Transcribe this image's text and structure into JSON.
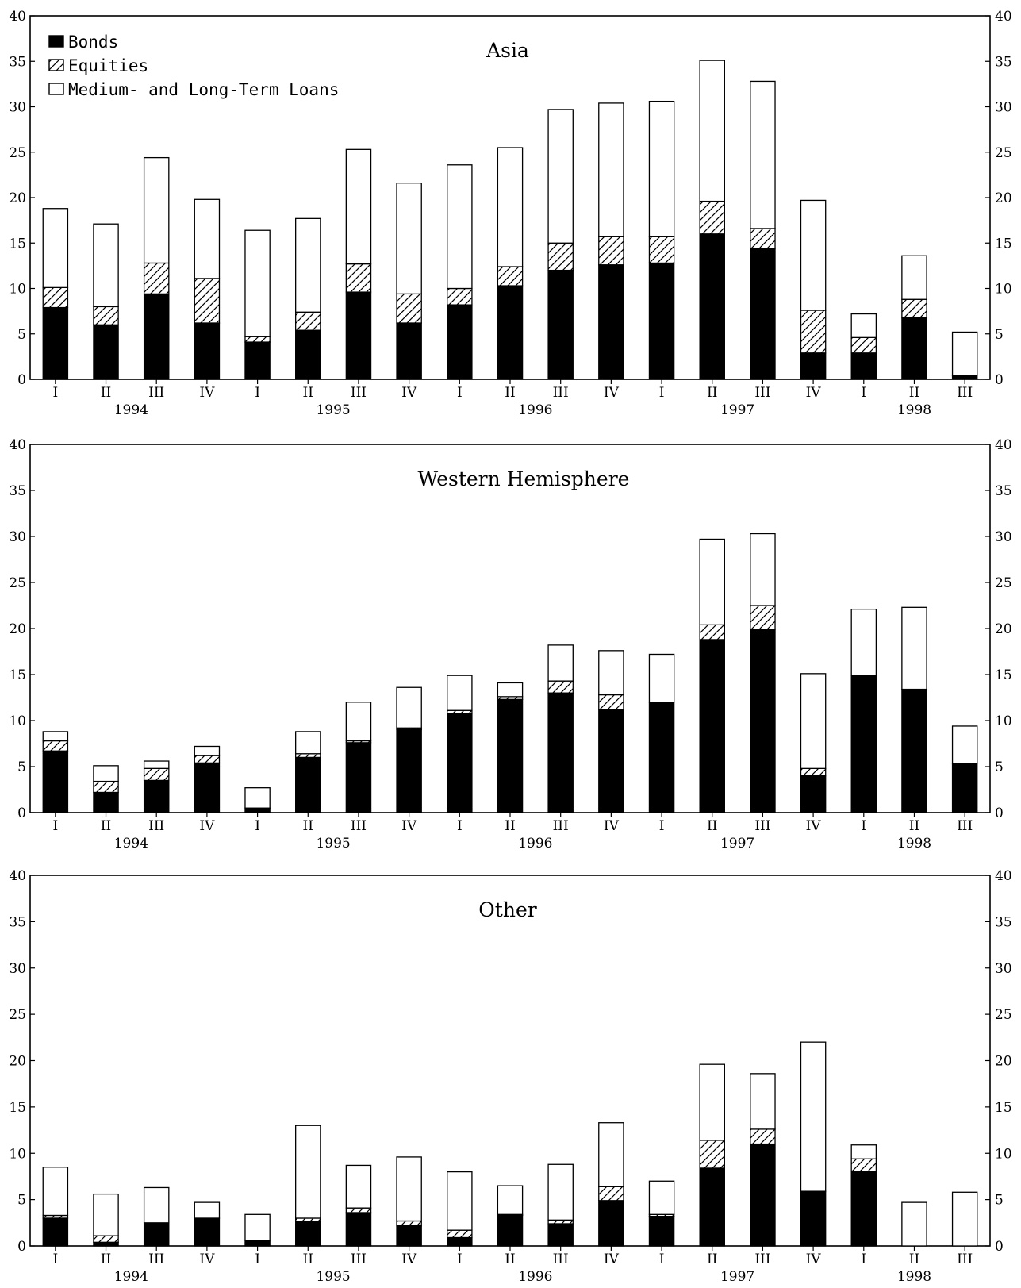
{
  "legend": {
    "bonds": "Bonds",
    "equities": "Equities",
    "loans": "Medium- and Long-Term Loans"
  },
  "chart_data": [
    {
      "type": "bar",
      "stacked": true,
      "title": "Asia",
      "quarters": [
        "I",
        "II",
        "III",
        "IV",
        "I",
        "II",
        "III",
        "IV",
        "I",
        "II",
        "III",
        "IV",
        "I",
        "II",
        "III",
        "IV",
        "I",
        "II",
        "III"
      ],
      "years": [
        "1994",
        "1995",
        "1996",
        "1997",
        "1998"
      ],
      "ylim": [
        0,
        40
      ],
      "yticks": [
        "0",
        "5",
        "10",
        "15",
        "20",
        "25",
        "30",
        "35",
        "40"
      ],
      "series": [
        {
          "name": "Bonds",
          "values": [
            7.9,
            6.0,
            9.4,
            6.2,
            4.1,
            5.4,
            9.6,
            6.2,
            8.2,
            10.3,
            12.0,
            12.6,
            12.8,
            16.0,
            14.4,
            2.9,
            2.9,
            6.8,
            0.4
          ]
        },
        {
          "name": "Equities",
          "values": [
            2.2,
            2.0,
            3.4,
            4.9,
            0.6,
            2.0,
            3.1,
            3.2,
            1.8,
            2.1,
            3.0,
            3.1,
            2.9,
            3.6,
            2.2,
            4.7,
            1.7,
            2.0,
            0.0
          ]
        },
        {
          "name": "Medium- and Long-Term Loans",
          "values": [
            8.7,
            9.1,
            11.6,
            8.7,
            11.7,
            10.3,
            12.6,
            12.2,
            13.6,
            13.1,
            14.7,
            14.7,
            14.9,
            15.5,
            16.2,
            12.1,
            2.6,
            4.8,
            4.8
          ]
        }
      ]
    },
    {
      "type": "bar",
      "stacked": true,
      "title": "Western Hemisphere",
      "quarters": [
        "I",
        "II",
        "III",
        "IV",
        "I",
        "II",
        "III",
        "IV",
        "I",
        "II",
        "III",
        "IV",
        "I",
        "II",
        "III",
        "IV",
        "I",
        "II",
        "III"
      ],
      "years": [
        "1994",
        "1995",
        "1996",
        "1997",
        "1998"
      ],
      "ylim": [
        0,
        40
      ],
      "yticks": [
        "0",
        "5",
        "10",
        "15",
        "20",
        "25",
        "30",
        "35",
        "40"
      ],
      "series": [
        {
          "name": "Bonds",
          "values": [
            6.7,
            2.2,
            3.5,
            5.4,
            0.5,
            6.0,
            7.6,
            9.0,
            10.8,
            12.3,
            13.0,
            11.2,
            12.0,
            18.8,
            19.9,
            4.0,
            14.9,
            13.4,
            5.3
          ]
        },
        {
          "name": "Equities",
          "values": [
            1.1,
            1.2,
            1.3,
            0.8,
            0.0,
            0.4,
            0.2,
            0.2,
            0.3,
            0.3,
            1.3,
            1.6,
            0.0,
            1.6,
            2.6,
            0.8,
            0.0,
            0.0,
            0.0
          ]
        },
        {
          "name": "Medium- and Long-Term Loans",
          "values": [
            1.0,
            1.7,
            0.8,
            1.0,
            2.2,
            2.4,
            4.2,
            4.4,
            3.8,
            1.5,
            3.9,
            4.8,
            5.2,
            9.3,
            7.8,
            10.3,
            7.2,
            8.9,
            4.1
          ]
        }
      ]
    },
    {
      "type": "bar",
      "stacked": true,
      "title": "Other",
      "quarters": [
        "I",
        "II",
        "III",
        "IV",
        "I",
        "II",
        "III",
        "IV",
        "I",
        "II",
        "III",
        "IV",
        "I",
        "II",
        "III",
        "IV",
        "I",
        "II",
        "III"
      ],
      "years": [
        "1994",
        "1995",
        "1996",
        "1997",
        "1998"
      ],
      "ylim": [
        0,
        40
      ],
      "yticks": [
        "0",
        "5",
        "10",
        "15",
        "20",
        "25",
        "30",
        "35",
        "40"
      ],
      "series": [
        {
          "name": "Bonds",
          "values": [
            3.0,
            0.4,
            2.5,
            3.0,
            0.6,
            2.6,
            3.6,
            2.2,
            0.9,
            3.3,
            2.4,
            4.9,
            3.2,
            8.4,
            11.0,
            5.9,
            8.0,
            0.0,
            0.0
          ]
        },
        {
          "name": "Equities",
          "values": [
            0.3,
            0.7,
            0.0,
            0.0,
            0.0,
            0.4,
            0.5,
            0.5,
            0.8,
            0.1,
            0.4,
            1.5,
            0.2,
            3.0,
            1.6,
            0.0,
            1.4,
            0.0,
            0.0
          ]
        },
        {
          "name": "Medium- and Long-Term Loans",
          "values": [
            5.2,
            4.5,
            3.8,
            1.7,
            2.8,
            10.0,
            4.6,
            6.9,
            6.3,
            3.1,
            6.0,
            6.9,
            3.6,
            8.2,
            6.0,
            16.1,
            1.5,
            4.7,
            5.8
          ]
        }
      ]
    }
  ]
}
